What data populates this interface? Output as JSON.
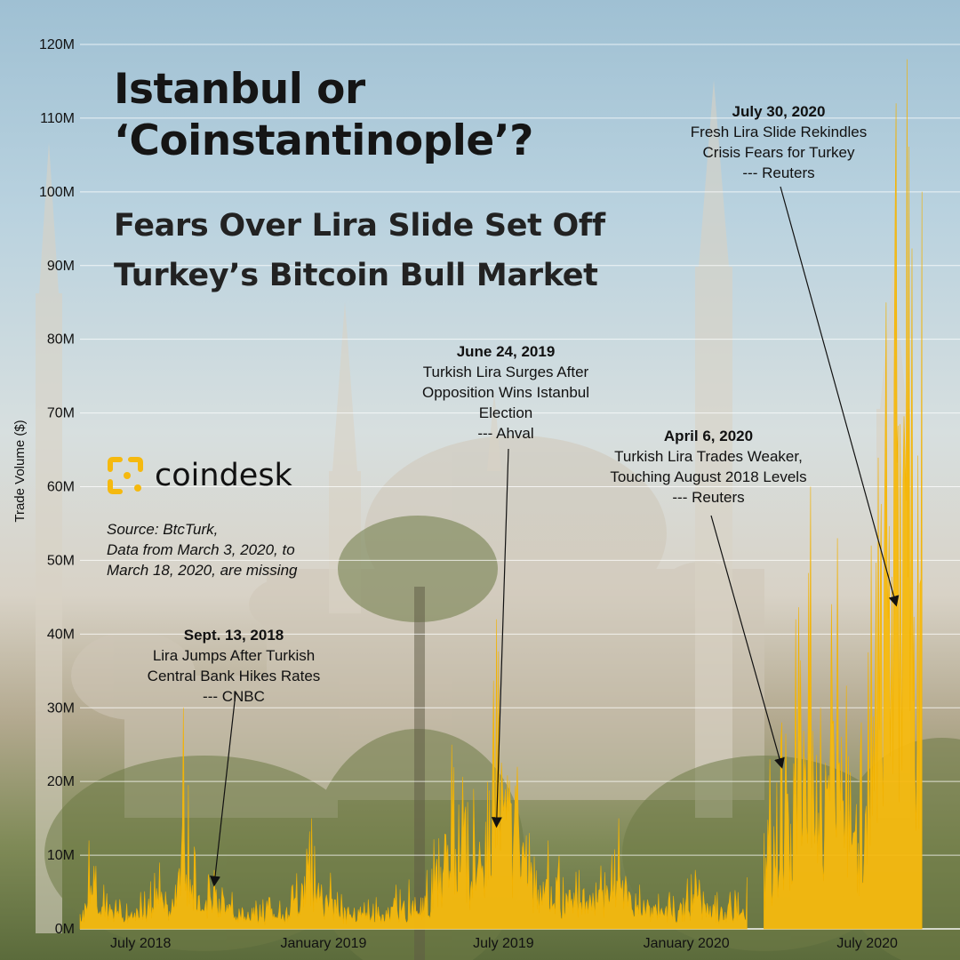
{
  "title": {
    "line1": "Istanbul or",
    "line2": "‘Coinstantinople’?",
    "sub1": "Fears Over Lira Slide Set Off",
    "sub2": "Turkey’s Bitcoin Bull Market"
  },
  "brand": {
    "name": "coindesk",
    "icon": "coindesk-logo-icon"
  },
  "source": {
    "line1": "Source: BtcTurk,",
    "line2": "Data from March 3, 2020, to",
    "line3": "March 18, 2020, are missing"
  },
  "chart_data": {
    "type": "area",
    "ylabel": "Trade Volume ($)",
    "ylim": [
      0,
      120000000
    ],
    "yticks": [
      "0M",
      "10M",
      "20M",
      "30M",
      "40M",
      "50M",
      "60M",
      "70M",
      "80M",
      "90M",
      "100M",
      "110M",
      "120M"
    ],
    "xticks": [
      "July 2018",
      "January 2019",
      "July 2019",
      "January 2020",
      "July 2020"
    ],
    "xlim": [
      "2018-05-01",
      "2020-09-01"
    ],
    "grid": true,
    "color": "#f5b90f",
    "missing_range": [
      "2020-03-03",
      "2020-03-18"
    ],
    "series_points": [
      [
        "2018-05-01",
        2000000
      ],
      [
        "2018-05-10",
        12000000
      ],
      [
        "2018-05-25",
        6000000
      ],
      [
        "2018-06-10",
        4000000
      ],
      [
        "2018-07-01",
        5000000
      ],
      [
        "2018-07-20",
        9000000
      ],
      [
        "2018-08-05",
        6000000
      ],
      [
        "2018-08-13",
        30000000
      ],
      [
        "2018-08-25",
        10000000
      ],
      [
        "2018-09-13",
        8000000
      ],
      [
        "2018-10-01",
        5000000
      ],
      [
        "2018-11-01",
        4000000
      ],
      [
        "2018-12-01",
        6000000
      ],
      [
        "2018-12-20",
        15000000
      ],
      [
        "2019-01-15",
        5000000
      ],
      [
        "2019-02-15",
        4000000
      ],
      [
        "2019-03-15",
        6000000
      ],
      [
        "2019-04-15",
        8000000
      ],
      [
        "2019-05-10",
        25000000
      ],
      [
        "2019-06-01",
        19000000
      ],
      [
        "2019-06-24",
        42000000
      ],
      [
        "2019-07-15",
        22000000
      ],
      [
        "2019-08-15",
        12000000
      ],
      [
        "2019-09-15",
        8000000
      ],
      [
        "2019-10-25",
        15000000
      ],
      [
        "2019-11-15",
        6000000
      ],
      [
        "2019-12-15",
        5000000
      ],
      [
        "2020-01-10",
        8000000
      ],
      [
        "2020-02-01",
        5000000
      ],
      [
        "2020-03-02",
        7000000
      ],
      [
        "2020-03-19",
        13000000
      ],
      [
        "2020-03-25",
        23000000
      ],
      [
        "2020-04-06",
        28000000
      ],
      [
        "2020-04-20",
        42000000
      ],
      [
        "2020-05-05",
        60000000
      ],
      [
        "2020-05-15",
        30000000
      ],
      [
        "2020-06-01",
        53000000
      ],
      [
        "2020-06-10",
        33000000
      ],
      [
        "2020-06-25",
        28000000
      ],
      [
        "2020-07-05",
        52000000
      ],
      [
        "2020-07-20",
        85000000
      ],
      [
        "2020-07-30",
        112000000
      ],
      [
        "2020-08-10",
        118000000
      ],
      [
        "2020-08-25",
        100000000
      ]
    ],
    "annotations": [
      {
        "date": "Sept. 13, 2018",
        "lines": [
          "Lira Jumps After Turkish",
          "Central Bank Hikes Rates",
          "--- CNBC"
        ],
        "target": [
          "2018-09-13",
          6000000
        ]
      },
      {
        "date": "June 24, 2019",
        "lines": [
          "Turkish Lira Surges After",
          "Opposition Wins Istanbul",
          "Election",
          "--- Ahval"
        ],
        "target": [
          "2019-06-24",
          14000000
        ]
      },
      {
        "date": "April 6, 2020",
        "lines": [
          "Turkish Lira Trades Weaker,",
          "Touching August 2018 Levels",
          "--- Reuters"
        ],
        "target": [
          "2020-04-06",
          22000000
        ]
      },
      {
        "date": "July 30, 2020",
        "lines": [
          "Fresh Lira Slide Rekindles",
          "Crisis Fears for Turkey",
          "--- Reuters"
        ],
        "target": [
          "2020-07-30",
          44000000
        ]
      }
    ]
  }
}
